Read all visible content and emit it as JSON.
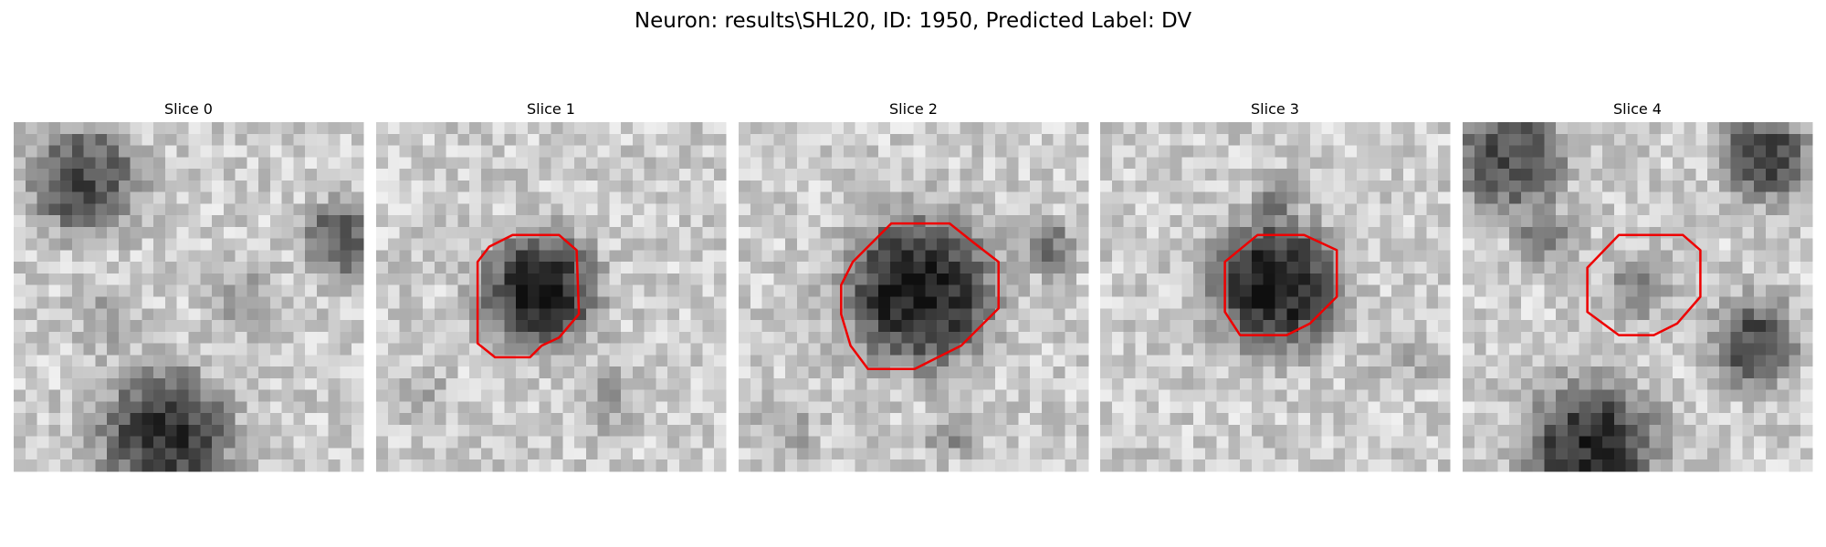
{
  "title": "Neuron: results\\SHL20, ID: 1950, Predicted Label: DV",
  "panels": [
    {
      "title": "Slice 0"
    },
    {
      "title": "Slice 1"
    },
    {
      "title": "Slice 2"
    },
    {
      "title": "Slice 3"
    },
    {
      "title": "Slice 4"
    }
  ]
}
